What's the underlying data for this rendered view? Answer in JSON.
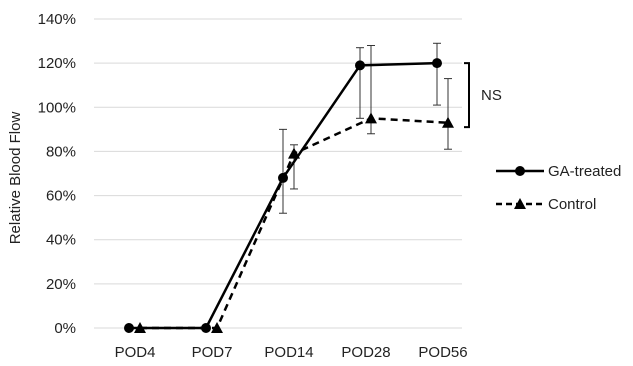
{
  "chart_data": {
    "type": "line",
    "title": "",
    "xlabel": "",
    "ylabel": "Relative Blood Flow",
    "categories": [
      "POD4",
      "POD7",
      "POD14",
      "POD28",
      "POD56"
    ],
    "ylim": [
      0,
      140
    ],
    "yticks": [
      "0%",
      "20%",
      "40%",
      "60%",
      "80%",
      "100%",
      "120%",
      "140%"
    ],
    "grid": "horizontal",
    "legend_position": "right",
    "series": [
      {
        "name": "GA-treated",
        "values": [
          0,
          0,
          68,
          119,
          120
        ],
        "error_low": [
          0,
          0,
          52,
          95,
          101
        ],
        "error_high": [
          0,
          0,
          90,
          127,
          129
        ],
        "marker": "circle",
        "line_style": "solid",
        "color": "#000000"
      },
      {
        "name": "Control",
        "values": [
          0,
          0,
          79,
          95,
          93
        ],
        "error_low": [
          0,
          0,
          63,
          88,
          81
        ],
        "error_high": [
          0,
          0,
          83,
          128,
          113
        ],
        "marker": "triangle",
        "line_style": "dashed",
        "color": "#000000"
      }
    ],
    "annotations": [
      {
        "text": "NS",
        "type": "significance-bracket",
        "span_categories": [
          "POD56"
        ],
        "bracket_low": 91,
        "bracket_high": 120
      }
    ]
  }
}
